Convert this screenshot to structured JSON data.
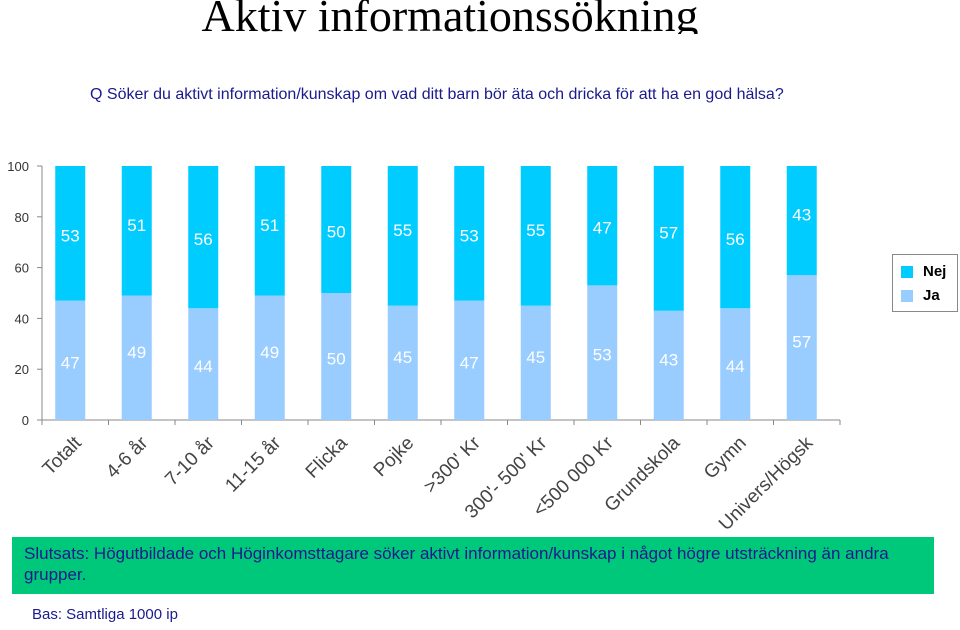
{
  "title": "Aktiv informationssökning",
  "question": "Q Söker du aktivt information/kunskap om vad ditt barn bör äta och dricka för att ha en god hälsa?",
  "chart_data": {
    "type": "bar",
    "stacked": true,
    "categories": [
      "Totalt",
      "4-6 år",
      "7-10 år",
      "11-15 år",
      "Flicka",
      "Pojke",
      ">300' Kr",
      "300'- 500' Kr",
      "<500 000 Kr",
      "Grundskola",
      "Gymn",
      "Univers/Högsk"
    ],
    "series": [
      {
        "name": "Ja",
        "values": [
          47,
          49,
          44,
          49,
          50,
          45,
          47,
          45,
          53,
          43,
          44,
          57
        ],
        "color": "#99ccff"
      },
      {
        "name": "Nej",
        "values": [
          53,
          51,
          56,
          51,
          50,
          55,
          53,
          55,
          47,
          57,
          56,
          43
        ],
        "color": "#00ccff"
      }
    ],
    "yticks": [
      0,
      20,
      40,
      60,
      80,
      100
    ],
    "ylim": [
      0,
      100
    ],
    "grid": false,
    "legend": "right"
  },
  "legend": {
    "items": [
      {
        "label": "Nej",
        "color": "#00ccff"
      },
      {
        "label": "Ja",
        "color": "#99ccff"
      }
    ]
  },
  "conclusion": "Slutsats: Högutbildade och Höginkomsttagare söker aktivt information/kunskap i något högre utsträckning än andra grupper.",
  "base": "Bas: Samtliga 1000 ip"
}
